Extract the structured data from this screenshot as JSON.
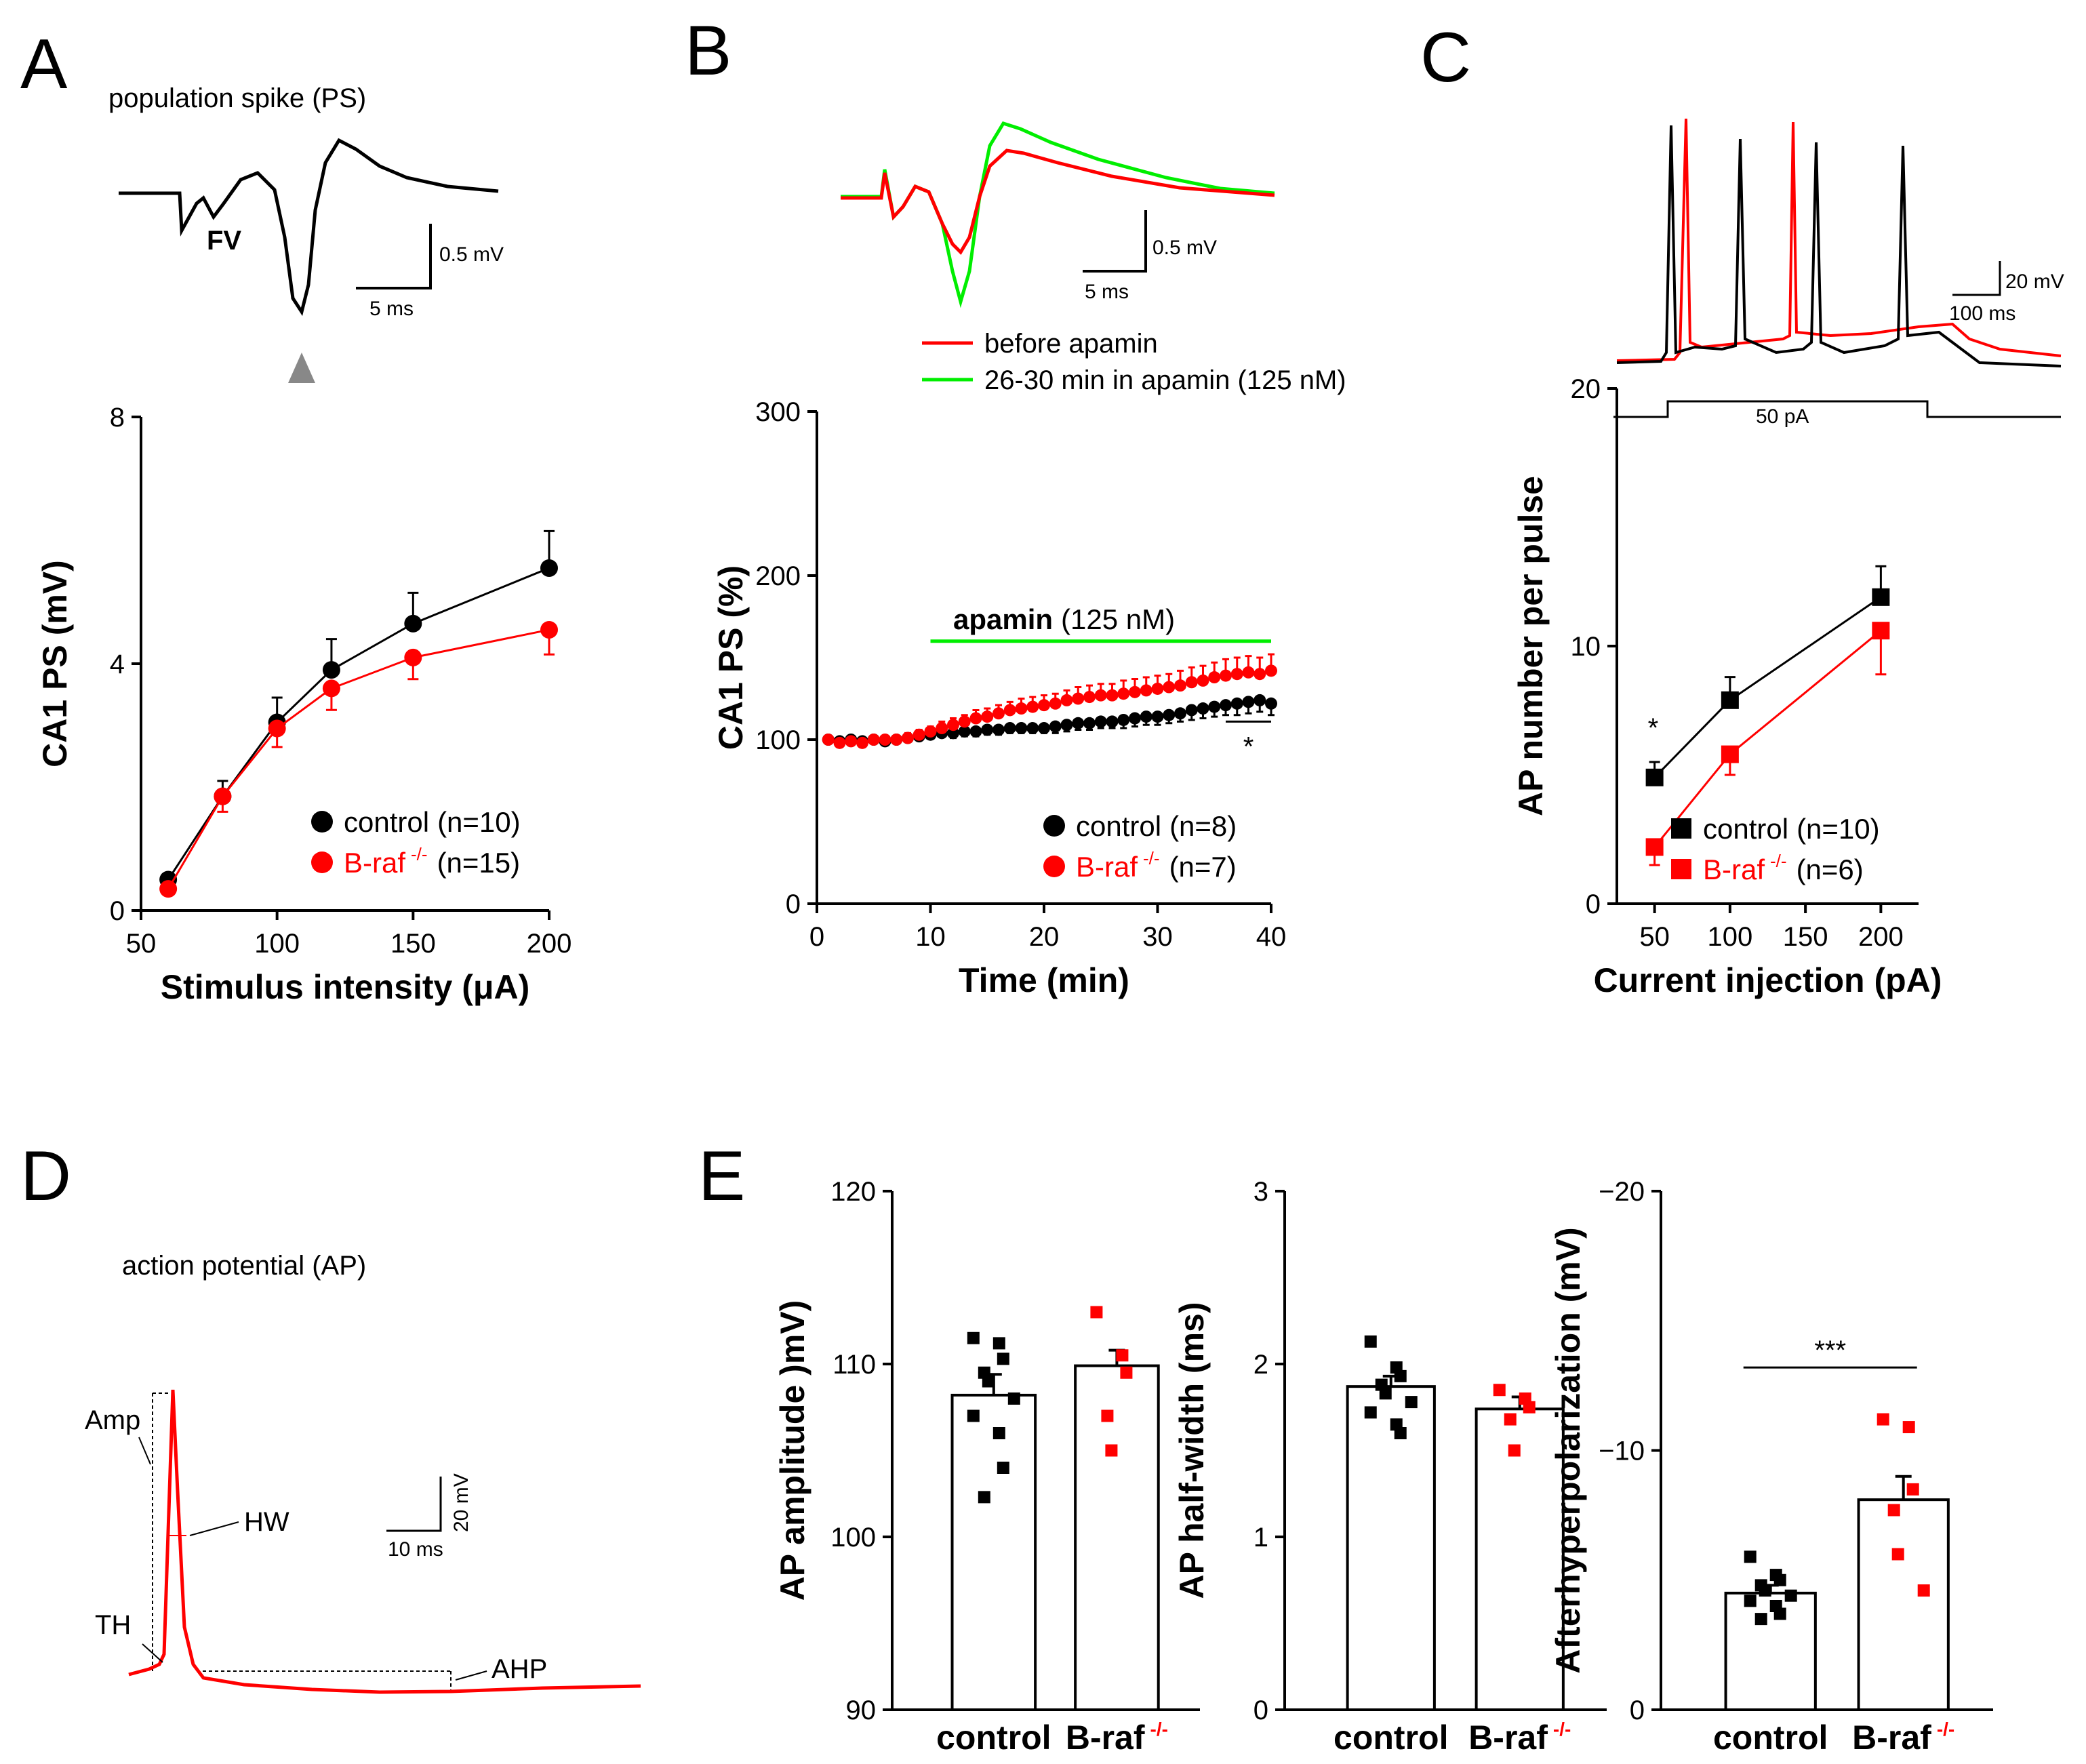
{
  "panels": {
    "A": {
      "label": "A",
      "trace_title": "population spike (PS)",
      "fv_label": "FV",
      "scale_y": "0.5 mV",
      "scale_x": "5 ms"
    },
    "B": {
      "label": "B",
      "scale_y": "0.5 mV",
      "scale_x": "5 ms",
      "trace_legend": [
        "before apamin",
        "26-30 min in apamin (125 nM)"
      ],
      "apamin_bold": "apamin",
      "apamin_conc": "(125 nM)",
      "sig": "*"
    },
    "C": {
      "label": "C",
      "scale_y": "20 mV",
      "scale_x": "100 ms",
      "step_label": "50 pA",
      "sig": "*"
    },
    "D": {
      "label": "D",
      "trace_title": "action potential (AP)",
      "amp": "Amp",
      "hw": "HW",
      "th": "TH",
      "ahp": "AHP",
      "scale_y": "20 mV",
      "scale_x": "10 ms"
    },
    "E": {
      "label": "E",
      "sig": "***"
    }
  },
  "colors": {
    "control": "#000000",
    "braf": "#ff0000",
    "apamin": "#00ee00"
  },
  "chart_data": [
    {
      "id": "A",
      "type": "line",
      "xlabel": "Stimulus intensity (μA)",
      "ylabel": "CA1 PS (mV)",
      "xlim": [
        50,
        200
      ],
      "ylim": [
        0,
        8
      ],
      "xticks": [
        50,
        100,
        150,
        200
      ],
      "yticks": [
        0,
        4,
        8
      ],
      "x": [
        60,
        80,
        100,
        120,
        150,
        200
      ],
      "series": [
        {
          "name": "control",
          "n": "(n=10)",
          "values": [
            0.5,
            1.85,
            3.05,
            3.9,
            4.65,
            5.55
          ],
          "err": [
            0.05,
            0.25,
            0.4,
            0.5,
            0.5,
            0.6
          ]
        },
        {
          "name": "B-raf",
          "sup": "-/-",
          "n": "(n=15)",
          "values": [
            0.35,
            1.85,
            2.95,
            3.6,
            4.1,
            4.55
          ],
          "err": [
            0.05,
            0.25,
            0.3,
            0.35,
            0.35,
            0.4
          ]
        }
      ]
    },
    {
      "id": "B",
      "type": "scatter",
      "xlabel": "Time (min)",
      "ylabel": "CA1 PS (%)",
      "xlim": [
        0,
        40
      ],
      "ylim": [
        0,
        300
      ],
      "xticks": [
        0,
        10,
        20,
        30,
        40
      ],
      "yticks": [
        0,
        100,
        200,
        300
      ],
      "apamin_range": [
        10,
        40
      ],
      "x": [
        1,
        2,
        3,
        4,
        5,
        6,
        7,
        8,
        9,
        10,
        11,
        12,
        13,
        14,
        15,
        16,
        17,
        18,
        19,
        20,
        21,
        22,
        23,
        24,
        25,
        26,
        27,
        28,
        29,
        30,
        31,
        32,
        33,
        34,
        35,
        36,
        37,
        38,
        39,
        40
      ],
      "series": [
        {
          "name": "control",
          "n": "(n=8)",
          "values": [
            100,
            99,
            100,
            99,
            100,
            99,
            100,
            101,
            102,
            103,
            104,
            104,
            105,
            105,
            106,
            106,
            107,
            107,
            107,
            107,
            108,
            109,
            110,
            110,
            111,
            111,
            112,
            113,
            114,
            114,
            115,
            116,
            118,
            119,
            120,
            121,
            122,
            123,
            124,
            122
          ],
          "err": [
            2,
            2,
            2,
            2,
            2,
            2,
            2,
            2,
            2,
            2,
            2,
            3,
            3,
            3,
            3,
            3,
            3,
            3,
            3,
            3,
            4,
            4,
            4,
            4,
            4,
            4,
            5,
            5,
            5,
            5,
            5,
            5,
            6,
            6,
            6,
            6,
            7,
            7,
            7,
            7
          ]
        },
        {
          "name": "B-raf",
          "sup": "-/-",
          "n": "(n=7)",
          "values": [
            100,
            98,
            99,
            98,
            100,
            100,
            100,
            101,
            103,
            105,
            107,
            109,
            111,
            113,
            114,
            116,
            118,
            119,
            120,
            121,
            122,
            124,
            125,
            126,
            127,
            127,
            128,
            129,
            130,
            131,
            132,
            133,
            135,
            136,
            138,
            139,
            140,
            141,
            140,
            142
          ],
          "err": [
            2,
            2,
            2,
            2,
            2,
            2,
            2,
            3,
            3,
            3,
            4,
            4,
            4,
            5,
            5,
            5,
            5,
            6,
            6,
            6,
            6,
            6,
            7,
            7,
            7,
            7,
            8,
            8,
            8,
            8,
            8,
            9,
            9,
            9,
            9,
            10,
            10,
            10,
            10,
            10
          ]
        }
      ]
    },
    {
      "id": "C",
      "type": "line",
      "xlabel": "Current injection (pA)",
      "ylabel": "AP number per pulse",
      "xlim": [
        25,
        225
      ],
      "ylim": [
        0,
        20
      ],
      "xticks": [
        50,
        100,
        150,
        200
      ],
      "yticks": [
        0,
        10,
        20
      ],
      "x": [
        50,
        100,
        200
      ],
      "series": [
        {
          "name": "control",
          "n": "(n=10)",
          "values": [
            4.9,
            7.9,
            11.9
          ],
          "err": [
            0.6,
            0.9,
            1.2
          ]
        },
        {
          "name": "B-raf",
          "sup": "-/-",
          "n": "(n=6)",
          "values": [
            2.2,
            5.8,
            10.6
          ],
          "err": [
            0.7,
            0.8,
            1.7
          ]
        }
      ]
    },
    {
      "id": "E1",
      "type": "bar",
      "ylabel": "AP amplitude )mV)",
      "ylim": [
        90,
        120
      ],
      "yticks": [
        90,
        100,
        110,
        120
      ],
      "categories": [
        "control",
        "B-raf"
      ],
      "sup": "-/-",
      "values": [
        108.2,
        109.9
      ],
      "err": [
        1.2,
        0.9
      ],
      "points": [
        [
          111.5,
          111.2,
          110.3,
          109.5,
          109.0,
          108.0,
          107.0,
          106.0,
          104.0,
          102.3
        ],
        [
          113.0,
          110.5,
          109.5,
          107.0,
          105.0
        ]
      ]
    },
    {
      "id": "E2",
      "type": "bar",
      "ylabel": "AP half-width (ms)",
      "ylim": [
        0,
        3
      ],
      "yticks": [
        0,
        1,
        2,
        3
      ],
      "categories": [
        "control",
        "B-raf"
      ],
      "sup": "-/-",
      "values": [
        1.87,
        1.74
      ],
      "err": [
        0.06,
        0.07
      ],
      "points": [
        [
          2.13,
          1.98,
          1.93,
          1.88,
          1.83,
          1.78,
          1.72,
          1.65,
          1.6
        ],
        [
          1.85,
          1.8,
          1.75,
          1.68,
          1.5
        ]
      ]
    },
    {
      "id": "E3",
      "type": "bar",
      "ylabel": "Afterhyperpolarization (mV)",
      "ylim": [
        0,
        -20
      ],
      "yticks": [
        0,
        -10,
        -20
      ],
      "ytick_labels": [
        "0",
        "−10",
        "−20"
      ],
      "categories": [
        "control",
        "B-raf"
      ],
      "sup": "-/-",
      "values": [
        -4.5,
        -8.1
      ],
      "err": [
        0.3,
        0.9
      ],
      "points": [
        [
          -5.9,
          -5.2,
          -5.0,
          -4.8,
          -4.6,
          -4.4,
          -4.2,
          -4.0,
          -3.7,
          -3.5
        ],
        [
          -11.2,
          -10.9,
          -8.5,
          -7.7,
          -6.0,
          -4.6
        ]
      ]
    }
  ]
}
